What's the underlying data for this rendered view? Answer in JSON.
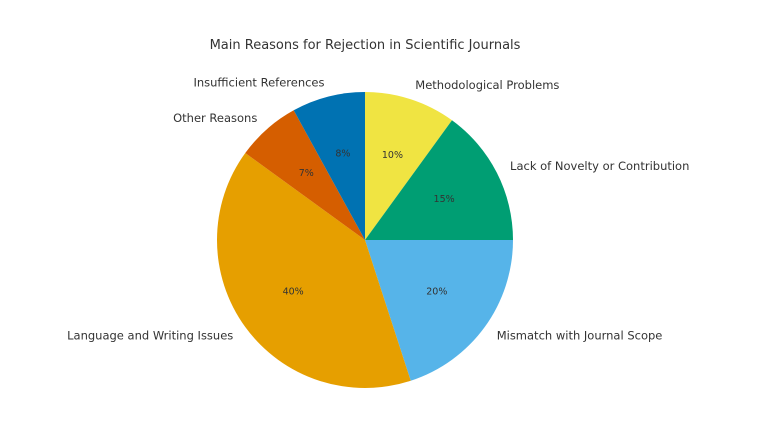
{
  "chart_data": {
    "type": "pie",
    "title": "Main Reasons for Rejection in Scientific Journals",
    "start_angle_deg": 90,
    "direction": "clockwise",
    "slices": [
      {
        "label": "Methodological Problems",
        "value": 10,
        "pct_label": "10%",
        "color": "#f0e442"
      },
      {
        "label": "Lack of Novelty or Contribution",
        "value": 15,
        "pct_label": "15%",
        "color": "#009e73"
      },
      {
        "label": "Mismatch with Journal Scope",
        "value": 20,
        "pct_label": "20%",
        "color": "#56b4e9"
      },
      {
        "label": "Language and Writing Issues",
        "value": 40,
        "pct_label": "40%",
        "color": "#e69f00"
      },
      {
        "label": "Other Reasons",
        "value": 7,
        "pct_label": "7%",
        "color": "#d55e00"
      },
      {
        "label": "Insufficient References",
        "value": 8,
        "pct_label": "8%",
        "color": "#0072b2"
      }
    ]
  }
}
